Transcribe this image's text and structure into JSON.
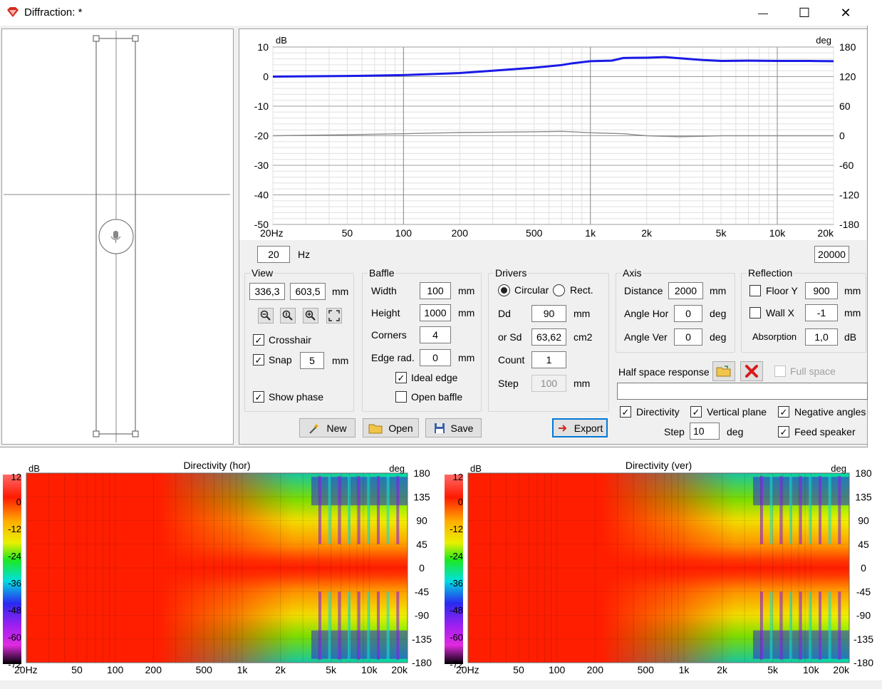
{
  "window": {
    "title": "Diffraction: *",
    "controls": {
      "minimize": "—",
      "maximize": "☐",
      "close": "✕"
    }
  },
  "response_plot": {
    "y_unit_left": "dB",
    "y_unit_right": "deg",
    "y_ticks_left": [
      "10",
      "0",
      "-10",
      "-20",
      "-30",
      "-40",
      "-50"
    ],
    "y_ticks_right": [
      "180",
      "120",
      "60",
      "0",
      "-60",
      "-120",
      "-180"
    ],
    "x_ticks": [
      "20Hz",
      "50",
      "100",
      "200",
      "500",
      "1k",
      "2k",
      "5k",
      "10k",
      "20k"
    ],
    "fmin": "20",
    "fmax": "20000",
    "freq_unit": "Hz",
    "colors": {
      "magnitude": "#1a1ae6",
      "phase": "#8c8c8c",
      "grid": "#c8c8c8"
    }
  },
  "view": {
    "title": "View",
    "x": "336,3",
    "y": "603,5",
    "unit": "mm",
    "tool_icons": [
      "zoom-out-icon",
      "zoom-reset-icon",
      "zoom-in-icon",
      "fit-icon"
    ],
    "crosshair_label": "Crosshair",
    "crosshair_checked": true,
    "snap_label": "Snap",
    "snap_checked": true,
    "snap_value": "5",
    "snap_unit": "mm",
    "show_phase_label": "Show phase",
    "show_phase_checked": true
  },
  "baffle": {
    "title": "Baffle",
    "width_label": "Width",
    "width": "100",
    "width_unit": "mm",
    "height_label": "Height",
    "height": "1000",
    "height_unit": "mm",
    "corners_label": "Corners",
    "corners": "4",
    "edge_label": "Edge rad.",
    "edge": "0",
    "edge_unit": "mm",
    "ideal_edge_label": "Ideal edge",
    "ideal_edge_checked": true,
    "open_baffle_label": "Open baffle",
    "open_baffle_checked": false
  },
  "drivers": {
    "title": "Drivers",
    "circular_label": "Circular",
    "rect_label": "Rect.",
    "selected": "circular",
    "dd_label": "Dd",
    "dd": "90",
    "dd_unit": "mm",
    "sd_label": "or Sd",
    "sd": "63,62",
    "sd_unit": "cm2",
    "count_label": "Count",
    "count": "1",
    "step_label": "Step",
    "step": "100",
    "step_unit": "mm"
  },
  "axis": {
    "title": "Axis",
    "distance_label": "Distance",
    "distance": "2000",
    "distance_unit": "mm",
    "angle_hor_label": "Angle Hor",
    "angle_hor": "0",
    "angle_hor_unit": "deg",
    "angle_ver_label": "Angle Ver",
    "angle_ver": "0",
    "angle_ver_unit": "deg"
  },
  "reflection": {
    "title": "Reflection",
    "floor_label": "Floor Y",
    "floor": "900",
    "floor_unit": "mm",
    "floor_checked": false,
    "wall_label": "Wall  X",
    "wall": "-1",
    "wall_unit": "mm",
    "wall_checked": false,
    "absorption_label": "Absorption",
    "absorption": "1,0",
    "absorption_unit": "dB"
  },
  "half_space": {
    "label": "Half space response",
    "full_space_label": "Full space",
    "full_space_checked": false,
    "path": ""
  },
  "directivity_opts": {
    "directivity_label": "Directivity",
    "directivity_checked": true,
    "vertical_plane_label": "Vertical plane",
    "vertical_plane_checked": true,
    "negative_angles_label": "Negative angles",
    "negative_angles_checked": true,
    "feed_speaker_label": "Feed speaker",
    "feed_speaker_checked": true,
    "step_label": "Step",
    "step": "10",
    "step_unit": "deg"
  },
  "buttons": {
    "new": "New",
    "open": "Open",
    "save": "Save",
    "export": "Export"
  },
  "heatmap_hor": {
    "title": "Directivity (hor)",
    "left_unit": "dB",
    "right_unit": "deg",
    "scale_ticks": [
      "12",
      "0",
      "-12",
      "-24",
      "-36",
      "-48",
      "-60",
      "-72"
    ],
    "angle_ticks": [
      "180",
      "135",
      "90",
      "45",
      "0",
      "-45",
      "-90",
      "-135",
      "-180"
    ],
    "x_ticks": [
      "20Hz",
      "50",
      "100",
      "200",
      "500",
      "1k",
      "2k",
      "5k",
      "10k",
      "20k"
    ]
  },
  "heatmap_ver": {
    "title": "Directivity (ver)",
    "left_unit": "dB",
    "right_unit": "deg",
    "scale_ticks": [
      "12",
      "0",
      "-12",
      "-24",
      "-36",
      "-48",
      "-60",
      "-72"
    ],
    "angle_ticks": [
      "180",
      "135",
      "90",
      "45",
      "0",
      "-45",
      "-90",
      "-135",
      "-180"
    ],
    "x_ticks": [
      "20Hz",
      "50",
      "100",
      "200",
      "500",
      "1k",
      "2k",
      "5k",
      "10k",
      "20k"
    ]
  },
  "chart_data": [
    {
      "type": "line",
      "xscale": "log",
      "xlim": [
        20,
        20000
      ],
      "ylim": [
        -50,
        10
      ],
      "y2lim": [
        -180,
        180
      ],
      "ylabel": "dB",
      "y2label": "deg",
      "series": [
        {
          "x": [
            20,
            50,
            100,
            200,
            300,
            500,
            700,
            800,
            1000,
            1300,
            1500,
            2000,
            2500,
            3000,
            4000,
            5000,
            7000,
            10000,
            15000,
            20000
          ],
          "y": [
            0,
            0.2,
            0.5,
            1.2,
            2,
            3,
            3.9,
            4.5,
            5.2,
            5.4,
            6.3,
            6.4,
            6.6,
            6.2,
            5.6,
            5.3,
            5.4,
            5.3,
            5.3,
            5.2
          ]
        },
        {
          "x": [
            20,
            50,
            100,
            200,
            500,
            700,
            800,
            1000,
            1500,
            2000,
            3000,
            4000,
            5000,
            10000,
            20000
          ],
          "y2": [
            0,
            2,
            4,
            6.5,
            8,
            9,
            8,
            6,
            4,
            0,
            -2,
            -1,
            0,
            0,
            0
          ]
        }
      ]
    },
    {
      "type": "heatmap",
      "title": "Directivity (hor)",
      "xscale": "log",
      "xlim": [
        20,
        20000
      ],
      "ylim": [
        -180,
        180
      ],
      "ylabel": "deg",
      "zlim": [
        -72,
        12
      ]
    },
    {
      "type": "heatmap",
      "title": "Directivity (ver)",
      "xscale": "log",
      "xlim": [
        20,
        20000
      ],
      "ylim": [
        -180,
        180
      ],
      "ylabel": "deg",
      "zlim": [
        -72,
        12
      ]
    }
  ]
}
